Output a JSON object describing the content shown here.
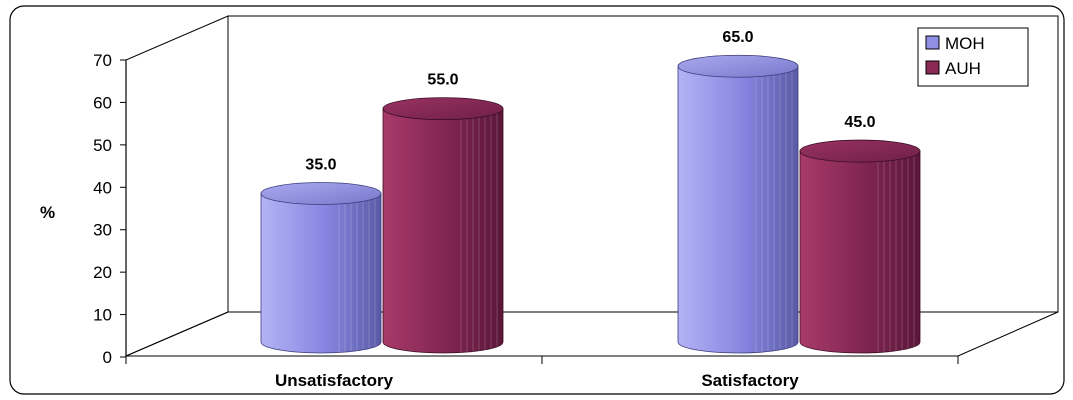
{
  "chart_data": {
    "type": "bar",
    "style": "3d-cylinder",
    "categories": [
      "Unsatisfactory",
      "Satisfactory"
    ],
    "series": [
      {
        "name": "MOH",
        "values": [
          35.0,
          65.0
        ],
        "color": "#8f8fe6"
      },
      {
        "name": "AUH",
        "values": [
          55.0,
          45.0
        ],
        "color": "#8a2a55"
      }
    ],
    "data_labels": [
      [
        "35.0",
        "65.0"
      ],
      [
        "55.0",
        "45.0"
      ]
    ],
    "ylabel": "%",
    "xlabel": "",
    "ylim": [
      0,
      70
    ],
    "yticks": [
      "0",
      "10",
      "20",
      "30",
      "40",
      "50",
      "60",
      "70"
    ],
    "legend": {
      "position": "top-right"
    },
    "grid": false
  }
}
